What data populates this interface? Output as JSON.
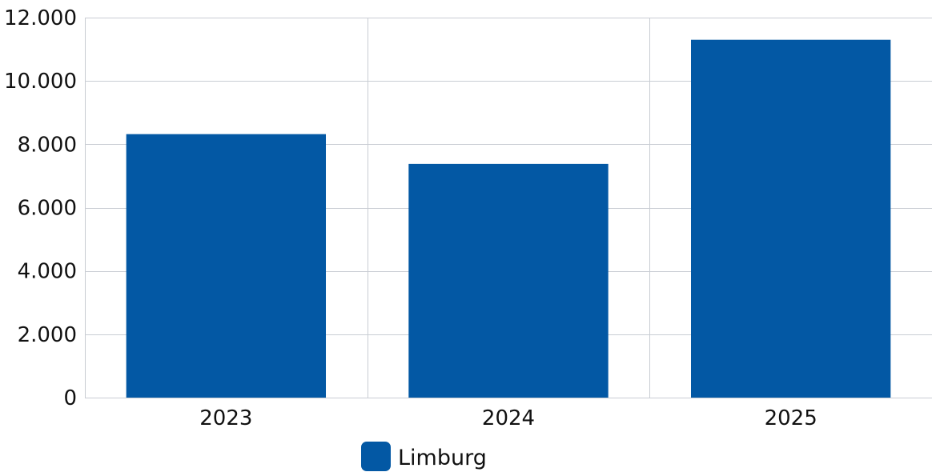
{
  "chart_data": {
    "type": "bar",
    "categories": [
      "2023",
      "2024",
      "2025"
    ],
    "series": [
      {
        "name": "Limburg",
        "values": [
          8320,
          7380,
          11300
        ],
        "color": "#0358a4"
      }
    ],
    "ylim": [
      0,
      12000
    ],
    "yticks": [
      0,
      2000,
      4000,
      6000,
      8000,
      10000,
      12000
    ],
    "ytick_labels": [
      "0",
      "2.000",
      "4.000",
      "6.000",
      "8.000",
      "10.000",
      "12.000"
    ],
    "grid": true,
    "legend_position": "bottom-center",
    "title": "",
    "xlabel": "",
    "ylabel": ""
  }
}
